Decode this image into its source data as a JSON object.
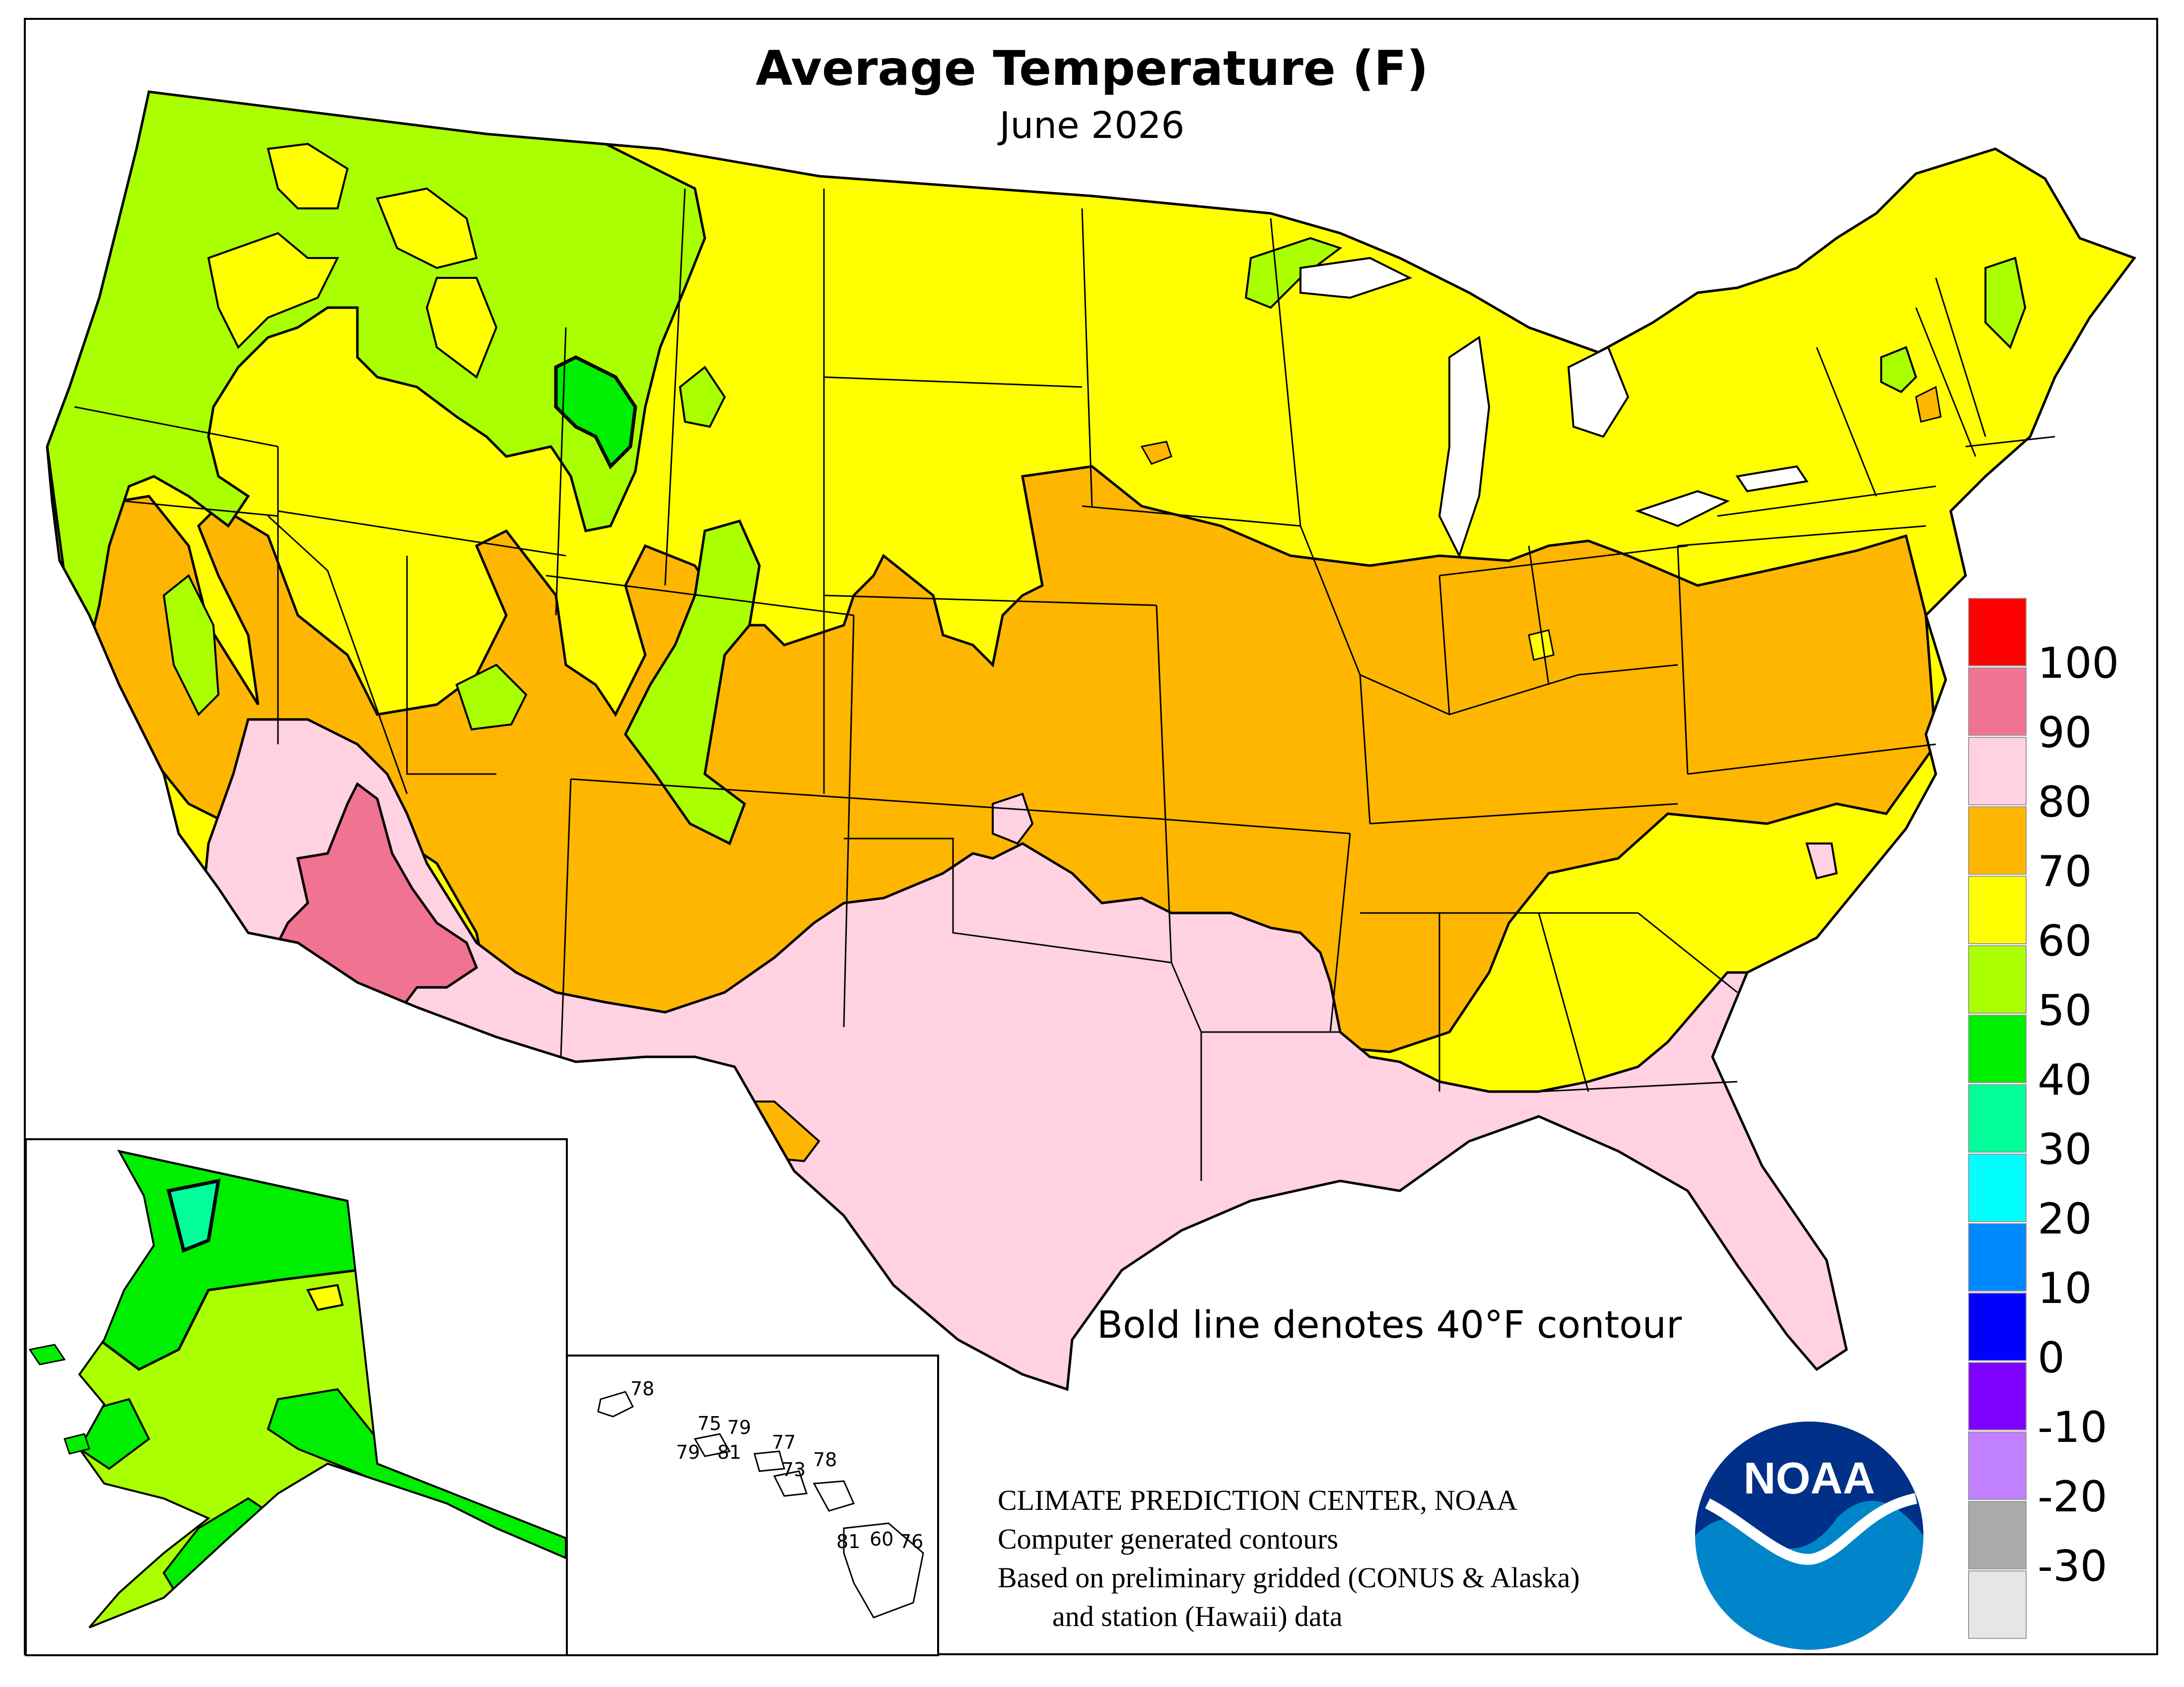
{
  "title": "Average Temperature (F)",
  "subtitle": "June 2026",
  "contour_note": "Bold line denotes 40°F contour",
  "credits": {
    "line1": "CLIMATE PREDICTION CENTER, NOAA",
    "line2": "Computer generated contours",
    "line3": "Based on preliminary gridded (CONUS & Alaska)",
    "line4": "and station (Hawaii) data"
  },
  "logo": {
    "text": "NOAA",
    "colors": {
      "blue": "#0085ca",
      "navy": "#003087"
    }
  },
  "legend": {
    "tick_labels": [
      "100",
      "90",
      "80",
      "70",
      "60",
      "50",
      "40",
      "30",
      "20",
      "10",
      "0",
      "-10",
      "-20",
      "-30"
    ],
    "swatches": [
      {
        "range": "100+",
        "color": "#ff0000"
      },
      {
        "range": "90-100",
        "color": "#f07391"
      },
      {
        "range": "80-90",
        "color": "#ffd1e1"
      },
      {
        "range": "70-80",
        "color": "#ffb600"
      },
      {
        "range": "60-70",
        "color": "#ffff00"
      },
      {
        "range": "50-60",
        "color": "#aaff00"
      },
      {
        "range": "40-50",
        "color": "#00ee00"
      },
      {
        "range": "30-40",
        "color": "#00ff9a"
      },
      {
        "range": "20-30",
        "color": "#00ffff"
      },
      {
        "range": "10-20",
        "color": "#0088ff"
      },
      {
        "range": "0-10",
        "color": "#0000ff"
      },
      {
        "range": "-10-0",
        "color": "#8000ff"
      },
      {
        "range": "-20--10",
        "color": "#c080ff"
      },
      {
        "range": "-30--20",
        "color": "#aaaaaa"
      },
      {
        "range": "below -30",
        "color": "#e6e6e6"
      }
    ]
  },
  "hawaii_values": [
    "78",
    "75",
    "79",
    "79",
    "81",
    "77",
    "73",
    "78",
    "81",
    "60",
    "76"
  ]
}
